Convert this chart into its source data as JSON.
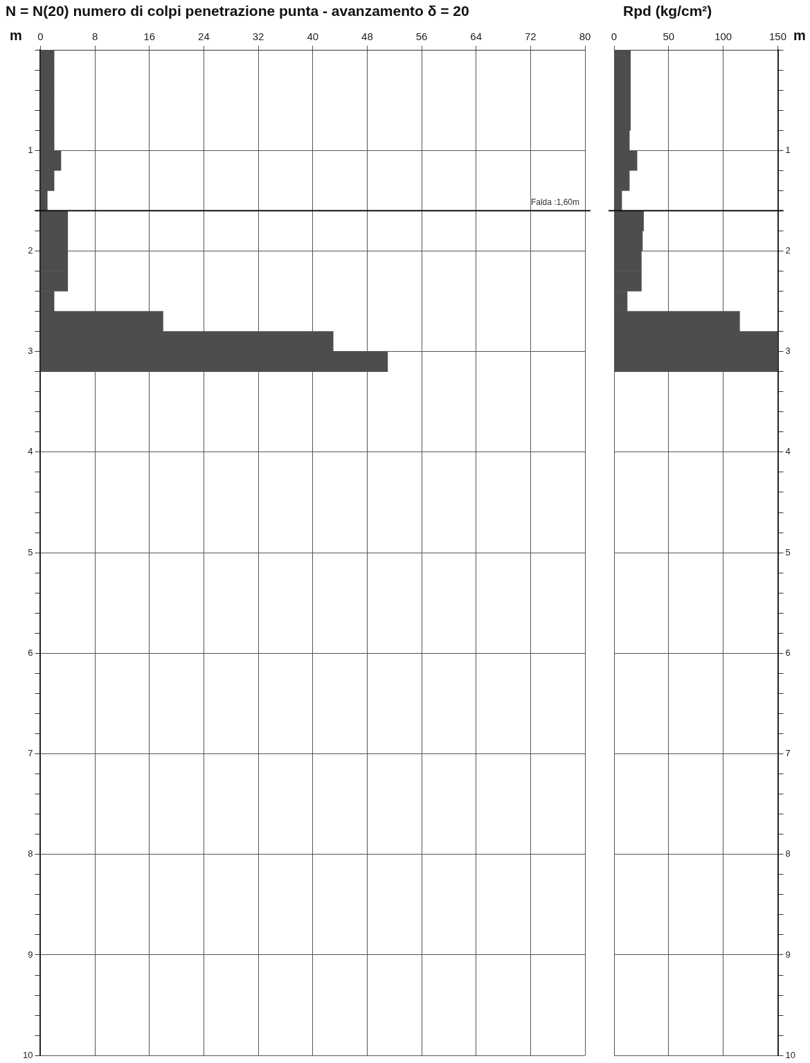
{
  "chart_data": [
    {
      "type": "histogram",
      "orientation": "horizontal",
      "title": "N = N(20)  numero di colpi penetrazione punta  -  avanzamento δ = 20",
      "ylabel": "m",
      "bins": [
        0,
        0.2,
        0.4,
        0.6,
        0.8,
        1,
        1.2,
        1.4,
        1.6,
        1.8,
        2,
        2.2,
        2.4,
        2.6,
        2.8,
        3,
        3.2
      ],
      "values": [
        2,
        2,
        2,
        2,
        2,
        3,
        2,
        1,
        4,
        4,
        4,
        4,
        2,
        18,
        43,
        51
      ],
      "color": "#4d4d4d",
      "xlim": [
        0,
        80
      ],
      "xticks": [
        0,
        8,
        16,
        24,
        32,
        40,
        48,
        56,
        64,
        72,
        80
      ],
      "ylim": [
        10,
        0
      ],
      "yticks": [
        {
          "value": 0,
          "label": null
        },
        {
          "value": 0.2,
          "label": null
        },
        {
          "value": 0.4,
          "label": null
        },
        {
          "value": 0.6,
          "label": null
        },
        {
          "value": 0.8,
          "label": null
        },
        1,
        {
          "value": 1.2,
          "label": null
        },
        {
          "value": 1.4,
          "label": null
        },
        {
          "value": 1.6,
          "label": null
        },
        {
          "value": 1.8,
          "label": null
        },
        2,
        {
          "value": 2.2,
          "label": null
        },
        {
          "value": 2.4,
          "label": null
        },
        {
          "value": 2.6,
          "label": null
        },
        {
          "value": 2.8,
          "label": null
        },
        3,
        {
          "value": 3.2,
          "label": null
        },
        {
          "value": 3.4,
          "label": null
        },
        {
          "value": 3.6,
          "label": null
        },
        {
          "value": 3.8,
          "label": null
        },
        4,
        {
          "value": 4.2,
          "label": null
        },
        {
          "value": 4.4,
          "label": null
        },
        {
          "value": 4.6,
          "label": null
        },
        {
          "value": 4.8,
          "label": null
        },
        5,
        {
          "value": 5.2,
          "label": null
        },
        {
          "value": 5.4,
          "label": null
        },
        {
          "value": 5.6,
          "label": null
        },
        {
          "value": 5.8,
          "label": null
        },
        6,
        {
          "value": 6.2,
          "label": null
        },
        {
          "value": 6.4,
          "label": null
        },
        {
          "value": 6.6,
          "label": null
        },
        {
          "value": 6.8,
          "label": null
        },
        7,
        {
          "value": 7.2,
          "label": null
        },
        {
          "value": 7.4,
          "label": null
        },
        {
          "value": 7.6,
          "label": null
        },
        {
          "value": 7.8,
          "label": null
        },
        8,
        {
          "value": 8.2,
          "label": null
        },
        {
          "value": 8.4,
          "label": null
        },
        {
          "value": 8.6,
          "label": null
        },
        {
          "value": 8.8,
          "label": null
        },
        9,
        {
          "value": 9.2,
          "label": null
        },
        {
          "value": 9.4,
          "label": null
        },
        {
          "value": 9.6,
          "label": null
        },
        {
          "value": 9.8,
          "label": null
        },
        10
      ],
      "grid": true,
      "ref_lines": [
        {
          "axis": "y",
          "value": 1.6,
          "label": "Falda :1,60m",
          "color": "#111111"
        }
      ]
    },
    {
      "type": "histogram",
      "orientation": "horizontal",
      "title": "Rpd (kg/cm²)",
      "ylabel": "m",
      "bins": [
        0,
        0.2,
        0.4,
        0.6,
        0.8,
        1,
        1.2,
        1.4,
        1.6,
        1.8,
        2,
        2.2,
        2.4,
        2.6,
        2.8,
        3,
        3.2
      ],
      "values": [
        15,
        15,
        15,
        15,
        14,
        21,
        14,
        7,
        27,
        26,
        25,
        25,
        12,
        115,
        150,
        150
      ],
      "color": "#4d4d4d",
      "xlim": [
        0,
        150
      ],
      "xticks": [
        0,
        50,
        100,
        150
      ],
      "ylim": [
        10,
        0
      ],
      "yticks": [
        {
          "value": 0,
          "label": null
        },
        {
          "value": 0.2,
          "label": null
        },
        {
          "value": 0.4,
          "label": null
        },
        {
          "value": 0.6,
          "label": null
        },
        {
          "value": 0.8,
          "label": null
        },
        1,
        {
          "value": 1.2,
          "label": null
        },
        {
          "value": 1.4,
          "label": null
        },
        {
          "value": 1.6,
          "label": null
        },
        {
          "value": 1.8,
          "label": null
        },
        2,
        {
          "value": 2.2,
          "label": null
        },
        {
          "value": 2.4,
          "label": null
        },
        {
          "value": 2.6,
          "label": null
        },
        {
          "value": 2.8,
          "label": null
        },
        3,
        {
          "value": 3.2,
          "label": null
        },
        {
          "value": 3.4,
          "label": null
        },
        {
          "value": 3.6,
          "label": null
        },
        {
          "value": 3.8,
          "label": null
        },
        4,
        {
          "value": 4.2,
          "label": null
        },
        {
          "value": 4.4,
          "label": null
        },
        {
          "value": 4.6,
          "label": null
        },
        {
          "value": 4.8,
          "label": null
        },
        5,
        {
          "value": 5.2,
          "label": null
        },
        {
          "value": 5.4,
          "label": null
        },
        {
          "value": 5.6,
          "label": null
        },
        {
          "value": 5.8,
          "label": null
        },
        6,
        {
          "value": 6.2,
          "label": null
        },
        {
          "value": 6.4,
          "label": null
        },
        {
          "value": 6.6,
          "label": null
        },
        {
          "value": 6.8,
          "label": null
        },
        7,
        {
          "value": 7.2,
          "label": null
        },
        {
          "value": 7.4,
          "label": null
        },
        {
          "value": 7.6,
          "label": null
        },
        {
          "value": 7.8,
          "label": null
        },
        8,
        {
          "value": 8.2,
          "label": null
        },
        {
          "value": 8.4,
          "label": null
        },
        {
          "value": 8.6,
          "label": null
        },
        {
          "value": 8.8,
          "label": null
        },
        9,
        {
          "value": 9.2,
          "label": null
        },
        {
          "value": 9.4,
          "label": null
        },
        {
          "value": 9.6,
          "label": null
        },
        {
          "value": 9.8,
          "label": null
        },
        10
      ],
      "grid": true,
      "ref_lines": [
        {
          "axis": "y",
          "value": 1.6,
          "color": "#111111"
        }
      ]
    }
  ]
}
